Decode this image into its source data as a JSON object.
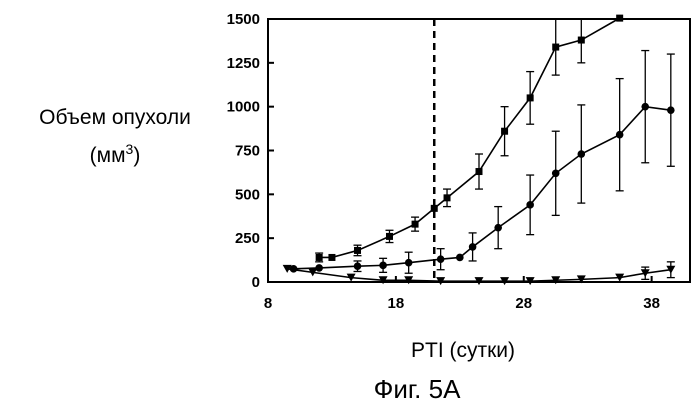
{
  "chart_data": {
    "type": "line",
    "ylabel_line1": "Объем опухоли",
    "ylabel_line2": "(мм",
    "ylabel_sup": "3",
    "ylabel_close": ")",
    "xlabel": "PTI (сутки)",
    "caption": "Фиг. 5A",
    "xlim": [
      8,
      41
    ],
    "ylim": [
      0,
      1500
    ],
    "xticks": [
      8,
      18,
      28,
      38
    ],
    "yticks": [
      0,
      250,
      500,
      750,
      1000,
      1250,
      1500
    ],
    "grid": false,
    "reference_line": {
      "x": 21,
      "style": "dashed"
    },
    "series": [
      {
        "marker": "square",
        "color": "#000000",
        "points": [
          {
            "x": 12,
            "y": 140,
            "err": 25
          },
          {
            "x": 13,
            "y": 140,
            "err": 0
          },
          {
            "x": 15,
            "y": 180,
            "err": 30
          },
          {
            "x": 17.5,
            "y": 260,
            "err": 35
          },
          {
            "x": 19.5,
            "y": 330,
            "err": 40
          },
          {
            "x": 21,
            "y": 420,
            "err": 0
          },
          {
            "x": 22,
            "y": 480,
            "err": 50
          },
          {
            "x": 24.5,
            "y": 630,
            "err": 100
          },
          {
            "x": 26.5,
            "y": 860,
            "err": 140
          },
          {
            "x": 28.5,
            "y": 1050,
            "err": 150
          },
          {
            "x": 30.5,
            "y": 1340,
            "err": 160
          },
          {
            "x": 32.5,
            "y": 1380,
            "err": 130
          },
          {
            "x": 35.5,
            "y": 1510,
            "err": 0
          }
        ]
      },
      {
        "marker": "circle",
        "color": "#000000",
        "points": [
          {
            "x": 10,
            "y": 75,
            "err": 0
          },
          {
            "x": 12,
            "y": 80,
            "err": 0
          },
          {
            "x": 15,
            "y": 90,
            "err": 30
          },
          {
            "x": 17,
            "y": 95,
            "err": 40
          },
          {
            "x": 19,
            "y": 110,
            "err": 60
          },
          {
            "x": 21.5,
            "y": 130,
            "err": 60
          },
          {
            "x": 23,
            "y": 140,
            "err": 0
          },
          {
            "x": 24,
            "y": 200,
            "err": 80
          },
          {
            "x": 26,
            "y": 310,
            "err": 120
          },
          {
            "x": 28.5,
            "y": 440,
            "err": 170
          },
          {
            "x": 30.5,
            "y": 620,
            "err": 240
          },
          {
            "x": 32.5,
            "y": 730,
            "err": 280
          },
          {
            "x": 35.5,
            "y": 840,
            "err": 320
          },
          {
            "x": 37.5,
            "y": 1000,
            "err": 320
          },
          {
            "x": 39.5,
            "y": 980,
            "err": 320
          }
        ]
      },
      {
        "marker": "triangle-down",
        "color": "#000000",
        "points": [
          {
            "x": 9.5,
            "y": 75,
            "err": 0
          },
          {
            "x": 11.5,
            "y": 55,
            "err": 0
          },
          {
            "x": 14.5,
            "y": 25,
            "err": 0
          },
          {
            "x": 17,
            "y": 10,
            "err": 0
          },
          {
            "x": 19,
            "y": 10,
            "err": 0
          },
          {
            "x": 21.5,
            "y": 5,
            "err": 0
          },
          {
            "x": 24.5,
            "y": 5,
            "err": 0
          },
          {
            "x": 26.5,
            "y": 5,
            "err": 0
          },
          {
            "x": 28.5,
            "y": 5,
            "err": 0
          },
          {
            "x": 30.5,
            "y": 10,
            "err": 0
          },
          {
            "x": 32.5,
            "y": 15,
            "err": 0
          },
          {
            "x": 35.5,
            "y": 25,
            "err": 0
          },
          {
            "x": 37.5,
            "y": 50,
            "err": 35
          },
          {
            "x": 39.5,
            "y": 70,
            "err": 45
          }
        ]
      }
    ]
  }
}
